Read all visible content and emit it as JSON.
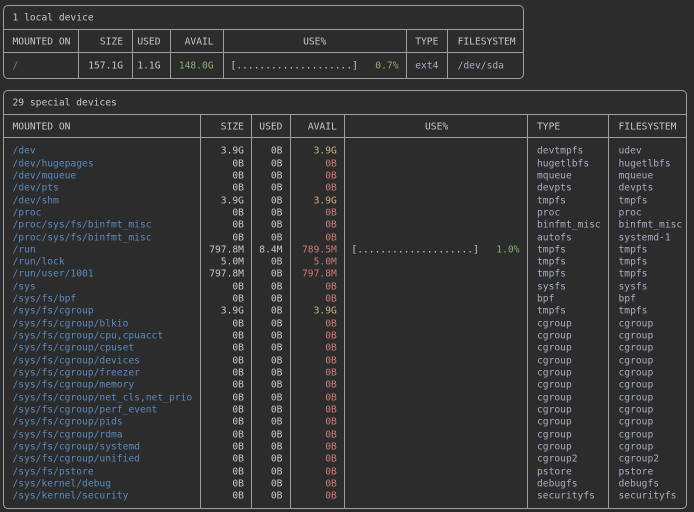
{
  "terminal": {
    "app": "duf disk usage output",
    "background": "#2c2c2c",
    "border_color": "#9e9e9e",
    "colors": {
      "default": "#c8c8c8",
      "blue": "#5c8abc",
      "green": "#88b16e",
      "yellow": "#ccaf85",
      "red": "#cd7a7a",
      "gray": "#a9adc2"
    }
  },
  "tables": [
    {
      "title": "1 local device",
      "columns": [
        "MOUNTED ON",
        "SIZE",
        "USED",
        "AVAIL",
        "USE%",
        "TYPE",
        "FILESYSTEM"
      ],
      "rows": [
        {
          "mounted_on": "/",
          "size": "157.1G",
          "used": "1.1G",
          "avail": "148.0G",
          "avail_color": "green",
          "usage_bar": "[....................]",
          "usage_pct": "0.7%",
          "type": "ext4",
          "filesystem": "/dev/sda"
        }
      ]
    },
    {
      "title": "29 special devices",
      "columns": [
        "MOUNTED ON",
        "SIZE",
        "USED",
        "AVAIL",
        "USE%",
        "TYPE",
        "FILESYSTEM"
      ],
      "rows": [
        {
          "mounted_on": "/dev",
          "size": "3.9G",
          "used": "0B",
          "avail": "3.9G",
          "avail_color": "yellow",
          "usage_bar": "",
          "usage_pct": "",
          "type": "devtmpfs",
          "filesystem": "udev"
        },
        {
          "mounted_on": "/dev/hugepages",
          "size": "0B",
          "used": "0B",
          "avail": "0B",
          "avail_color": "red",
          "usage_bar": "",
          "usage_pct": "",
          "type": "hugetlbfs",
          "filesystem": "hugetlbfs"
        },
        {
          "mounted_on": "/dev/mqueue",
          "size": "0B",
          "used": "0B",
          "avail": "0B",
          "avail_color": "red",
          "usage_bar": "",
          "usage_pct": "",
          "type": "mqueue",
          "filesystem": "mqueue"
        },
        {
          "mounted_on": "/dev/pts",
          "size": "0B",
          "used": "0B",
          "avail": "0B",
          "avail_color": "red",
          "usage_bar": "",
          "usage_pct": "",
          "type": "devpts",
          "filesystem": "devpts"
        },
        {
          "mounted_on": "/dev/shm",
          "size": "3.9G",
          "used": "0B",
          "avail": "3.9G",
          "avail_color": "yellow",
          "usage_bar": "",
          "usage_pct": "",
          "type": "tmpfs",
          "filesystem": "tmpfs"
        },
        {
          "mounted_on": "/proc",
          "size": "0B",
          "used": "0B",
          "avail": "0B",
          "avail_color": "red",
          "usage_bar": "",
          "usage_pct": "",
          "type": "proc",
          "filesystem": "proc"
        },
        {
          "mounted_on": "/proc/sys/fs/binfmt_misc",
          "size": "0B",
          "used": "0B",
          "avail": "0B",
          "avail_color": "red",
          "usage_bar": "",
          "usage_pct": "",
          "type": "binfmt_misc",
          "filesystem": "binfmt_misc"
        },
        {
          "mounted_on": "/proc/sys/fs/binfmt_misc",
          "size": "0B",
          "used": "0B",
          "avail": "0B",
          "avail_color": "red",
          "usage_bar": "",
          "usage_pct": "",
          "type": "autofs",
          "filesystem": "systemd-1"
        },
        {
          "mounted_on": "/run",
          "size": "797.8M",
          "used": "8.4M",
          "avail": "789.5M",
          "avail_color": "red",
          "usage_bar": "[....................]",
          "usage_pct": "1.0%",
          "type": "tmpfs",
          "filesystem": "tmpfs"
        },
        {
          "mounted_on": "/run/lock",
          "size": "5.0M",
          "used": "0B",
          "avail": "5.0M",
          "avail_color": "red",
          "usage_bar": "",
          "usage_pct": "",
          "type": "tmpfs",
          "filesystem": "tmpfs"
        },
        {
          "mounted_on": "/run/user/1001",
          "size": "797.8M",
          "used": "0B",
          "avail": "797.8M",
          "avail_color": "red",
          "usage_bar": "",
          "usage_pct": "",
          "type": "tmpfs",
          "filesystem": "tmpfs"
        },
        {
          "mounted_on": "/sys",
          "size": "0B",
          "used": "0B",
          "avail": "0B",
          "avail_color": "red",
          "usage_bar": "",
          "usage_pct": "",
          "type": "sysfs",
          "filesystem": "sysfs"
        },
        {
          "mounted_on": "/sys/fs/bpf",
          "size": "0B",
          "used": "0B",
          "avail": "0B",
          "avail_color": "red",
          "usage_bar": "",
          "usage_pct": "",
          "type": "bpf",
          "filesystem": "bpf"
        },
        {
          "mounted_on": "/sys/fs/cgroup",
          "size": "3.9G",
          "used": "0B",
          "avail": "3.9G",
          "avail_color": "yellow",
          "usage_bar": "",
          "usage_pct": "",
          "type": "tmpfs",
          "filesystem": "tmpfs"
        },
        {
          "mounted_on": "/sys/fs/cgroup/blkio",
          "size": "0B",
          "used": "0B",
          "avail": "0B",
          "avail_color": "red",
          "usage_bar": "",
          "usage_pct": "",
          "type": "cgroup",
          "filesystem": "cgroup"
        },
        {
          "mounted_on": "/sys/fs/cgroup/cpu,cpuacct",
          "size": "0B",
          "used": "0B",
          "avail": "0B",
          "avail_color": "red",
          "usage_bar": "",
          "usage_pct": "",
          "type": "cgroup",
          "filesystem": "cgroup"
        },
        {
          "mounted_on": "/sys/fs/cgroup/cpuset",
          "size": "0B",
          "used": "0B",
          "avail": "0B",
          "avail_color": "red",
          "usage_bar": "",
          "usage_pct": "",
          "type": "cgroup",
          "filesystem": "cgroup"
        },
        {
          "mounted_on": "/sys/fs/cgroup/devices",
          "size": "0B",
          "used": "0B",
          "avail": "0B",
          "avail_color": "red",
          "usage_bar": "",
          "usage_pct": "",
          "type": "cgroup",
          "filesystem": "cgroup"
        },
        {
          "mounted_on": "/sys/fs/cgroup/freezer",
          "size": "0B",
          "used": "0B",
          "avail": "0B",
          "avail_color": "red",
          "usage_bar": "",
          "usage_pct": "",
          "type": "cgroup",
          "filesystem": "cgroup"
        },
        {
          "mounted_on": "/sys/fs/cgroup/memory",
          "size": "0B",
          "used": "0B",
          "avail": "0B",
          "avail_color": "red",
          "usage_bar": "",
          "usage_pct": "",
          "type": "cgroup",
          "filesystem": "cgroup"
        },
        {
          "mounted_on": "/sys/fs/cgroup/net_cls,net_prio",
          "size": "0B",
          "used": "0B",
          "avail": "0B",
          "avail_color": "red",
          "usage_bar": "",
          "usage_pct": "",
          "type": "cgroup",
          "filesystem": "cgroup"
        },
        {
          "mounted_on": "/sys/fs/cgroup/perf_event",
          "size": "0B",
          "used": "0B",
          "avail": "0B",
          "avail_color": "red",
          "usage_bar": "",
          "usage_pct": "",
          "type": "cgroup",
          "filesystem": "cgroup"
        },
        {
          "mounted_on": "/sys/fs/cgroup/pids",
          "size": "0B",
          "used": "0B",
          "avail": "0B",
          "avail_color": "red",
          "usage_bar": "",
          "usage_pct": "",
          "type": "cgroup",
          "filesystem": "cgroup"
        },
        {
          "mounted_on": "/sys/fs/cgroup/rdma",
          "size": "0B",
          "used": "0B",
          "avail": "0B",
          "avail_color": "red",
          "usage_bar": "",
          "usage_pct": "",
          "type": "cgroup",
          "filesystem": "cgroup"
        },
        {
          "mounted_on": "/sys/fs/cgroup/systemd",
          "size": "0B",
          "used": "0B",
          "avail": "0B",
          "avail_color": "red",
          "usage_bar": "",
          "usage_pct": "",
          "type": "cgroup",
          "filesystem": "cgroup"
        },
        {
          "mounted_on": "/sys/fs/cgroup/unified",
          "size": "0B",
          "used": "0B",
          "avail": "0B",
          "avail_color": "red",
          "usage_bar": "",
          "usage_pct": "",
          "type": "cgroup2",
          "filesystem": "cgroup2"
        },
        {
          "mounted_on": "/sys/fs/pstore",
          "size": "0B",
          "used": "0B",
          "avail": "0B",
          "avail_color": "red",
          "usage_bar": "",
          "usage_pct": "",
          "type": "pstore",
          "filesystem": "pstore"
        },
        {
          "mounted_on": "/sys/kernel/debug",
          "size": "0B",
          "used": "0B",
          "avail": "0B",
          "avail_color": "red",
          "usage_bar": "",
          "usage_pct": "",
          "type": "debugfs",
          "filesystem": "debugfs"
        },
        {
          "mounted_on": "/sys/kernel/security",
          "size": "0B",
          "used": "0B",
          "avail": "0B",
          "avail_color": "red",
          "usage_bar": "",
          "usage_pct": "",
          "type": "securityfs",
          "filesystem": "securityfs"
        }
      ]
    }
  ]
}
